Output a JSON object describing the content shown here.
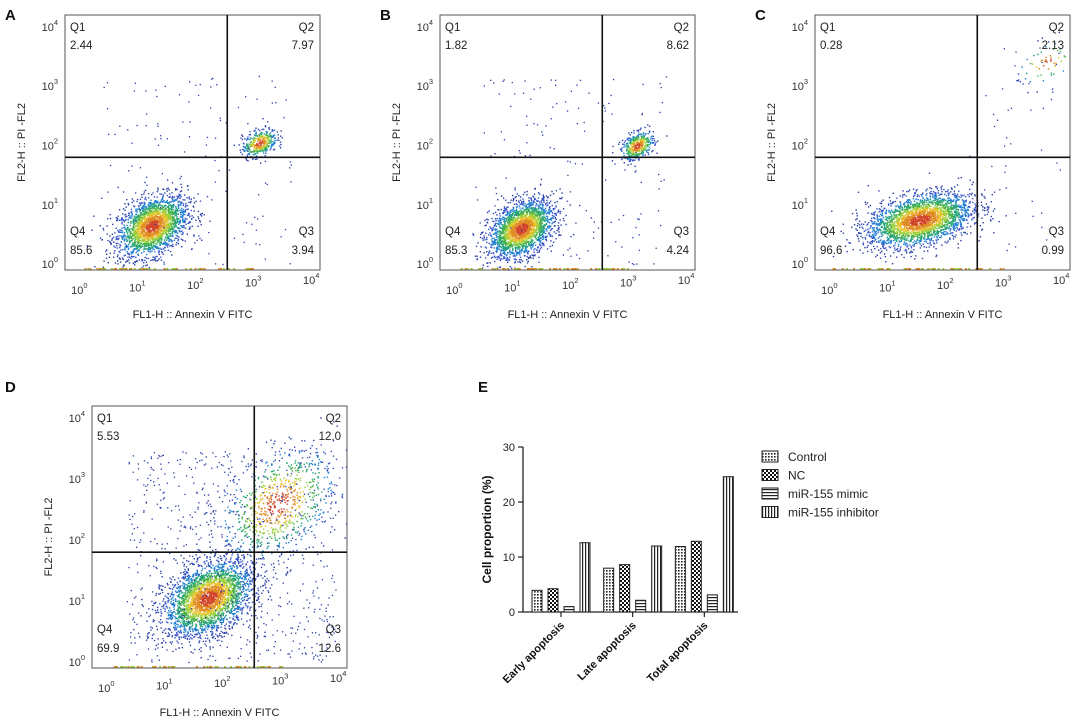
{
  "panels": [
    {
      "letter": "A",
      "xlabel": "FL1-H :: Annexin V FITC",
      "ylabel": "FL2-H :: PI -FL2",
      "quadrants": {
        "q1": {
          "name": "Q1",
          "value": "2.44"
        },
        "q2": {
          "name": "Q2",
          "value": "7.97"
        },
        "q3": {
          "name": "Q3",
          "value": "3.94"
        },
        "q4": {
          "name": "Q4",
          "value": "85.6"
        }
      }
    },
    {
      "letter": "B",
      "xlabel": "FL1-H :: Annexin V FITC",
      "ylabel": "FL2-H :: PI -FL2",
      "quadrants": {
        "q1": {
          "name": "Q1",
          "value": "1.82"
        },
        "q2": {
          "name": "Q2",
          "value": "8.62"
        },
        "q3": {
          "name": "Q3",
          "value": "4.24"
        },
        "q4": {
          "name": "Q4",
          "value": "85.3"
        }
      }
    },
    {
      "letter": "C",
      "xlabel": "FL1-H :: Annexin V FITC",
      "ylabel": "FL2-H :: PI -FL2",
      "quadrants": {
        "q1": {
          "name": "Q1",
          "value": "0.28"
        },
        "q2": {
          "name": "Q2",
          "value": "2.13"
        },
        "q3": {
          "name": "Q3",
          "value": "0.99"
        },
        "q4": {
          "name": "Q4",
          "value": "96.6"
        }
      }
    },
    {
      "letter": "D",
      "xlabel": "FL1-H :: Annexin V FITC",
      "ylabel": "FL2-H :: PI -FL2",
      "quadrants": {
        "q1": {
          "name": "Q1",
          "value": "5.53"
        },
        "q2": {
          "name": "Q2",
          "value": "12.0"
        },
        "q3": {
          "name": "Q3",
          "value": "12.6"
        },
        "q4": {
          "name": "Q4",
          "value": "69.9"
        }
      }
    }
  ],
  "flow_axis": {
    "base": "10",
    "exponents": [
      "0",
      "1",
      "2",
      "3",
      "4"
    ],
    "x_range_log": [
      -0.3,
      4.1
    ],
    "y_range_log": [
      -0.1,
      4.2
    ],
    "gate_log": [
      2.5,
      1.8
    ]
  },
  "bar_panel": {
    "letter": "E"
  },
  "chart_data": {
    "type": "bar",
    "title": "",
    "xlabel": "",
    "ylabel": "Cell proportion (%)",
    "ylim": [
      0,
      30
    ],
    "yticks": [
      "0",
      "10",
      "20",
      "30"
    ],
    "categories": [
      "Early apoptosis",
      "Late apoptosis",
      "Total apoptosis"
    ],
    "series": [
      {
        "name": "Control",
        "pattern": "dots",
        "values": [
          3.94,
          7.97,
          11.91
        ]
      },
      {
        "name": "NC",
        "pattern": "checker",
        "values": [
          4.24,
          8.62,
          12.86
        ]
      },
      {
        "name": "miR-155 mimic",
        "pattern": "hlines",
        "values": [
          0.99,
          2.13,
          3.12
        ]
      },
      {
        "name": "miR-155 inhibitor",
        "pattern": "vlines",
        "values": [
          12.6,
          12.0,
          24.6
        ]
      }
    ]
  }
}
